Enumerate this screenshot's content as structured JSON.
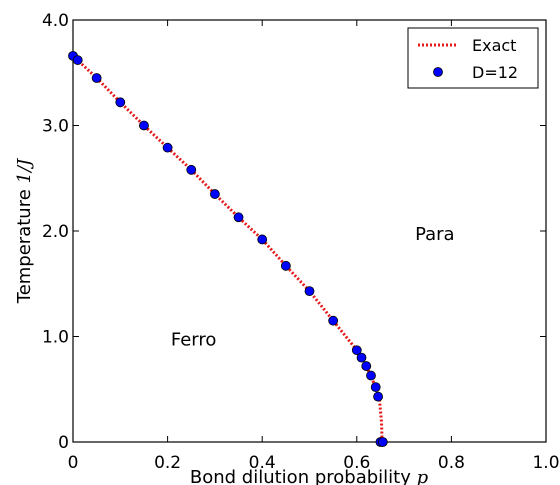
{
  "chart_data": {
    "type": "scatter",
    "xlabel_text": "Bond dilution probability ",
    "xlabel_var": "p",
    "ylabel_text": "Temperature ",
    "ylabel_var": "1/J",
    "xlim": [
      0,
      1.0
    ],
    "ylim": [
      0,
      4.0
    ],
    "x_ticks": [
      {
        "value": 0,
        "label": "0"
      },
      {
        "value": 0.2,
        "label": "0.2"
      },
      {
        "value": 0.4,
        "label": "0.4"
      },
      {
        "value": 0.6,
        "label": "0.6"
      },
      {
        "value": 0.8,
        "label": "0.8"
      },
      {
        "value": 1.0,
        "label": "1.0"
      }
    ],
    "y_ticks": [
      {
        "value": 0,
        "label": "0"
      },
      {
        "value": 1.0,
        "label": "1.0"
      },
      {
        "value": 2.0,
        "label": "2.0"
      },
      {
        "value": 3.0,
        "label": "3.0"
      },
      {
        "value": 4.0,
        "label": "4.0"
      }
    ],
    "grid": false,
    "legend": {
      "placement": "top-right"
    },
    "annotations": [
      {
        "text": "Para",
        "x": 0.765,
        "y": 1.97
      },
      {
        "text": "Ferro",
        "x": 0.255,
        "y": 0.97
      }
    ],
    "series": [
      {
        "name": "Exact",
        "style": "dotted-line",
        "color": "#e41a1c",
        "x": [
          0,
          0.05,
          0.1,
          0.15,
          0.2,
          0.25,
          0.3,
          0.35,
          0.4,
          0.45,
          0.5,
          0.55,
          0.6,
          0.62,
          0.64,
          0.648,
          0.652,
          0.653,
          0.653
        ],
        "y": [
          3.66,
          3.45,
          3.22,
          3.0,
          2.79,
          2.58,
          2.35,
          2.13,
          1.92,
          1.67,
          1.43,
          1.15,
          0.87,
          0.72,
          0.52,
          0.4,
          0.2,
          0.08,
          0
        ]
      },
      {
        "name": "D=12",
        "style": "markers",
        "color": "#0000ff",
        "x": [
          0,
          0.01,
          0.05,
          0.1,
          0.15,
          0.2,
          0.25,
          0.3,
          0.35,
          0.4,
          0.45,
          0.5,
          0.55,
          0.6,
          0.61,
          0.62,
          0.63,
          0.64,
          0.645,
          0.65,
          0.655
        ],
        "y": [
          3.66,
          3.62,
          3.45,
          3.22,
          3.0,
          2.79,
          2.58,
          2.35,
          2.13,
          1.92,
          1.67,
          1.43,
          1.15,
          0.87,
          0.8,
          0.72,
          0.63,
          0.52,
          0.43,
          0.0,
          0.0
        ]
      }
    ]
  }
}
